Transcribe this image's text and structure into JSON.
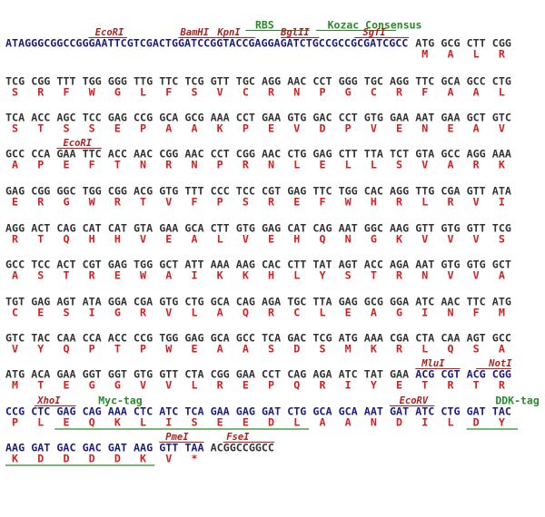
{
  "rows": [
    {
      "annotations": [
        {
          "label": "RBS",
          "color": "#2a8a2a"
        },
        {
          "label": "Kozac Consensus",
          "color": "#2a8a2a"
        },
        {
          "label": "EcoRI",
          "color": "#b02020"
        },
        {
          "label": "BamHI",
          "color": "#b02020"
        },
        {
          "label": "KpnI",
          "color": "#b02020"
        },
        {
          "label": "BglII",
          "color": "#b02020"
        },
        {
          "label": "SgfI",
          "color": "#b02020"
        }
      ],
      "leader": "ATAGGGCGGCCGGGAATTCGTCGACTGGATCCGGTACCGAGGAGATCTGCCGCCGCGATCGCC",
      "codons": [
        "ATG",
        "GCG",
        "CTT",
        "CGG"
      ],
      "amino_acids": [
        "M",
        "A",
        "L",
        "R"
      ]
    },
    {
      "codons": [
        "TCG",
        "CGG",
        "TTT",
        "TGG",
        "GGG",
        "TTG",
        "TTC",
        "TCG",
        "GTT",
        "TGC",
        "AGG",
        "AAC",
        "CCT",
        "GGG",
        "TGC",
        "AGG",
        "TTC",
        "GCA",
        "GCC",
        "CTG"
      ],
      "amino_acids": [
        "S",
        "R",
        "F",
        "W",
        "G",
        "L",
        "F",
        "S",
        "V",
        "C",
        "R",
        "N",
        "P",
        "G",
        "C",
        "R",
        "F",
        "A",
        "A",
        "L"
      ]
    },
    {
      "codons": [
        "TCA",
        "ACC",
        "AGC",
        "TCC",
        "GAG",
        "CCG",
        "GCA",
        "GCG",
        "AAA",
        "CCT",
        "GAA",
        "GTG",
        "GAC",
        "CCT",
        "GTG",
        "GAA",
        "AAT",
        "GAA",
        "GCT",
        "GTC"
      ],
      "amino_acids": [
        "S",
        "T",
        "S",
        "S",
        "E",
        "P",
        "A",
        "A",
        "K",
        "P",
        "E",
        "V",
        "D",
        "P",
        "V",
        "E",
        "N",
        "E",
        "A",
        "V"
      ]
    },
    {
      "annotations": [
        {
          "label": "EcoRI",
          "color": "#b02020"
        }
      ],
      "codons": [
        "GCC",
        "CCA",
        "GAA",
        "TTC",
        "ACC",
        "AAC",
        "CGG",
        "AAC",
        "CCT",
        "CGG",
        "AAC",
        "CTG",
        "GAG",
        "CTT",
        "TTA",
        "TCT",
        "GTA",
        "GCC",
        "AGG",
        "AAA"
      ],
      "amino_acids": [
        "A",
        "P",
        "E",
        "F",
        "T",
        "N",
        "R",
        "N",
        "P",
        "R",
        "N",
        "L",
        "E",
        "L",
        "L",
        "S",
        "V",
        "A",
        "R",
        "K"
      ]
    },
    {
      "codons": [
        "GAG",
        "CGG",
        "GGC",
        "TGG",
        "CGG",
        "ACG",
        "GTG",
        "TTT",
        "CCC",
        "TCC",
        "CGT",
        "GAG",
        "TTC",
        "TGG",
        "CAC",
        "AGG",
        "TTG",
        "CGA",
        "GTT",
        "ATA"
      ],
      "amino_acids": [
        "E",
        "R",
        "G",
        "W",
        "R",
        "T",
        "V",
        "F",
        "P",
        "S",
        "R",
        "E",
        "F",
        "W",
        "H",
        "R",
        "L",
        "R",
        "V",
        "I"
      ]
    },
    {
      "codons": [
        "AGG",
        "ACT",
        "CAG",
        "CAT",
        "CAT",
        "GTA",
        "GAA",
        "GCA",
        "CTT",
        "GTG",
        "GAG",
        "CAT",
        "CAG",
        "AAT",
        "GGC",
        "AAG",
        "GTT",
        "GTG",
        "GTT",
        "TCG"
      ],
      "amino_acids": [
        "R",
        "T",
        "Q",
        "H",
        "H",
        "V",
        "E",
        "A",
        "L",
        "V",
        "E",
        "H",
        "Q",
        "N",
        "G",
        "K",
        "V",
        "V",
        "V",
        "S"
      ]
    },
    {
      "codons": [
        "GCC",
        "TCC",
        "ACT",
        "CGT",
        "GAG",
        "TGG",
        "GCT",
        "ATT",
        "AAA",
        "AAG",
        "CAC",
        "CTT",
        "TAT",
        "AGT",
        "ACC",
        "AGA",
        "AAT",
        "GTG",
        "GTG",
        "GCT"
      ],
      "amino_acids": [
        "A",
        "S",
        "T",
        "R",
        "E",
        "W",
        "A",
        "I",
        "K",
        "K",
        "H",
        "L",
        "Y",
        "S",
        "T",
        "R",
        "N",
        "V",
        "V",
        "A"
      ]
    },
    {
      "codons": [
        "TGT",
        "GAG",
        "AGT",
        "ATA",
        "GGA",
        "CGA",
        "GTG",
        "CTG",
        "GCA",
        "CAG",
        "AGA",
        "TGC",
        "TTA",
        "GAG",
        "GCG",
        "GGA",
        "ATC",
        "AAC",
        "TTC",
        "ATG"
      ],
      "amino_acids": [
        "C",
        "E",
        "S",
        "I",
        "G",
        "R",
        "V",
        "L",
        "A",
        "Q",
        "R",
        "C",
        "L",
        "E",
        "A",
        "G",
        "I",
        "N",
        "F",
        "M"
      ]
    },
    {
      "codons": [
        "GTC",
        "TAC",
        "CAA",
        "CCA",
        "ACC",
        "CCG",
        "TGG",
        "GAG",
        "GCA",
        "GCC",
        "TCA",
        "GAC",
        "TCG",
        "ATG",
        "AAA",
        "CGA",
        "CTA",
        "CAA",
        "AGT",
        "GCC"
      ],
      "amino_acids": [
        "V",
        "Y",
        "Q",
        "P",
        "T",
        "P",
        "W",
        "E",
        "A",
        "A",
        "S",
        "D",
        "S",
        "M",
        "K",
        "R",
        "L",
        "Q",
        "S",
        "A"
      ]
    },
    {
      "annotations": [
        {
          "label": "MluI",
          "color": "#b02020"
        },
        {
          "label": "NotI",
          "color": "#b02020"
        }
      ],
      "codons": [
        "ATG",
        "ACA",
        "GAA",
        "GGT",
        "GGT",
        "GTG",
        "GTT",
        "CTA",
        "CGG",
        "GAA",
        "CCT",
        "CAG",
        "AGA",
        "ATC",
        "TAT",
        "GAA",
        "ACG",
        "CGT",
        "ACG",
        "CGG"
      ],
      "amino_acids": [
        "M",
        "T",
        "E",
        "G",
        "G",
        "V",
        "V",
        "L",
        "R",
        "E",
        "P",
        "Q",
        "R",
        "I",
        "Y",
        "E",
        "T",
        "R",
        "T",
        "R"
      ]
    },
    {
      "annotations": [
        {
          "label": "XhoI",
          "color": "#b02020"
        },
        {
          "label": "Myc-tag",
          "color": "#2a8a2a"
        },
        {
          "label": "EcoRV",
          "color": "#b02020"
        },
        {
          "label": "DDK-tag",
          "color": "#2a8a2a"
        }
      ],
      "codons": [
        "CCG",
        "CTC",
        "GAG",
        "CAG",
        "AAA",
        "CTC",
        "ATC",
        "TCA",
        "GAA",
        "GAG",
        "GAT",
        "CTG",
        "GCA",
        "GCA",
        "AAT",
        "GAT",
        "ATC",
        "CTG",
        "GAT",
        "TAC"
      ],
      "amino_acids": [
        "P",
        "L",
        "E",
        "Q",
        "K",
        "L",
        "I",
        "S",
        "E",
        "E",
        "D",
        "L",
        "A",
        "A",
        "N",
        "D",
        "I",
        "L",
        "D",
        "Y"
      ]
    },
    {
      "annotations": [
        {
          "label": "PmeI",
          "color": "#b02020"
        },
        {
          "label": "FseI",
          "color": "#b02020"
        }
      ],
      "codons": [
        "AAG",
        "GAT",
        "GAC",
        "GAC",
        "GAT",
        "AAG",
        "GTT",
        "TAA"
      ],
      "amino_acids": [
        "K",
        "D",
        "D",
        "D",
        "D",
        "K",
        "V",
        "*"
      ],
      "trailer": "ACGGCCGGCC"
    }
  ]
}
